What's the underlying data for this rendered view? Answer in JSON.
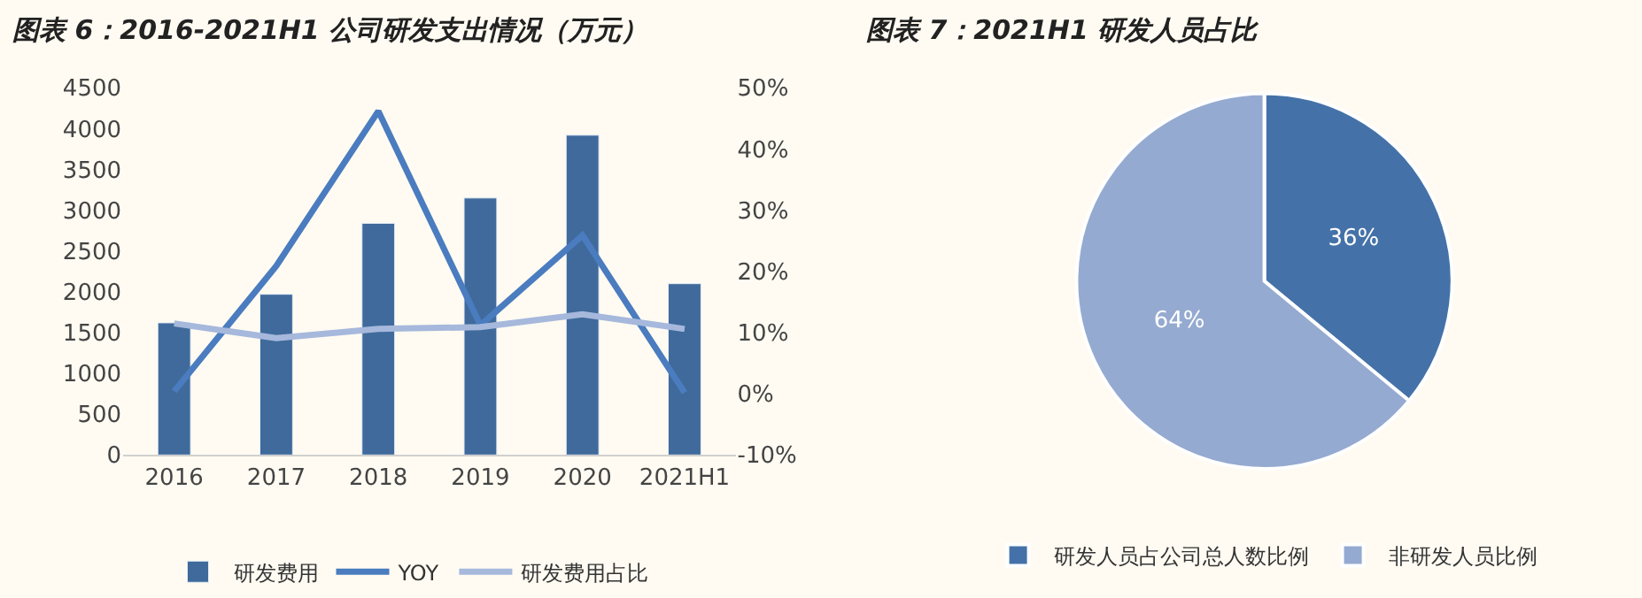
{
  "chart_data": [
    {
      "type": "bar",
      "title": "图表 6：2016-2021H1 公司研发支出情况（万元）",
      "categories": [
        "2016",
        "2017",
        "2018",
        "2019",
        "2020",
        "2021H1"
      ],
      "series": [
        {
          "name": "研发费用",
          "type": "bar",
          "color": "#3f6a9b",
          "values": [
            1620,
            1970,
            2840,
            3150,
            3920,
            2100
          ]
        },
        {
          "name": "YOY",
          "type": "line",
          "axis": "y2",
          "color": "#4a7cbf",
          "values": [
            0.4,
            20.9,
            46.2,
            11.2,
            25.9,
            0.2
          ]
        },
        {
          "name": "研发费用占比",
          "type": "line",
          "axis": "y2",
          "color": "#a6b8dc",
          "values": [
            11.5,
            9.1,
            10.6,
            10.9,
            13.0,
            10.6
          ]
        }
      ],
      "ylim": [
        0,
        4500
      ],
      "yticks": [
        0,
        500,
        1000,
        1500,
        2000,
        2500,
        3000,
        3500,
        4000,
        4500
      ],
      "y2lim": [
        -10,
        50
      ],
      "y2ticks": [
        {
          "value": -10,
          "label": "-10%"
        },
        {
          "value": 0,
          "label": "0%"
        },
        {
          "value": 10,
          "label": "10%"
        },
        {
          "value": 20,
          "label": "20%"
        },
        {
          "value": 30,
          "label": "30%"
        },
        {
          "value": 40,
          "label": "40%"
        },
        {
          "value": 50,
          "label": "50%"
        }
      ],
      "grid": false,
      "legend": "bottom"
    },
    {
      "type": "pie",
      "title": "图表 7：2021H1 研发人员占比",
      "categories": [
        "研发人员占公司总人数比例",
        "非研发人员比例"
      ],
      "values": [
        36,
        64
      ],
      "colors": [
        "#4472a8",
        "#95aad0"
      ],
      "value_labels": [
        "36%",
        "64%"
      ],
      "legend": "bottom"
    }
  ]
}
